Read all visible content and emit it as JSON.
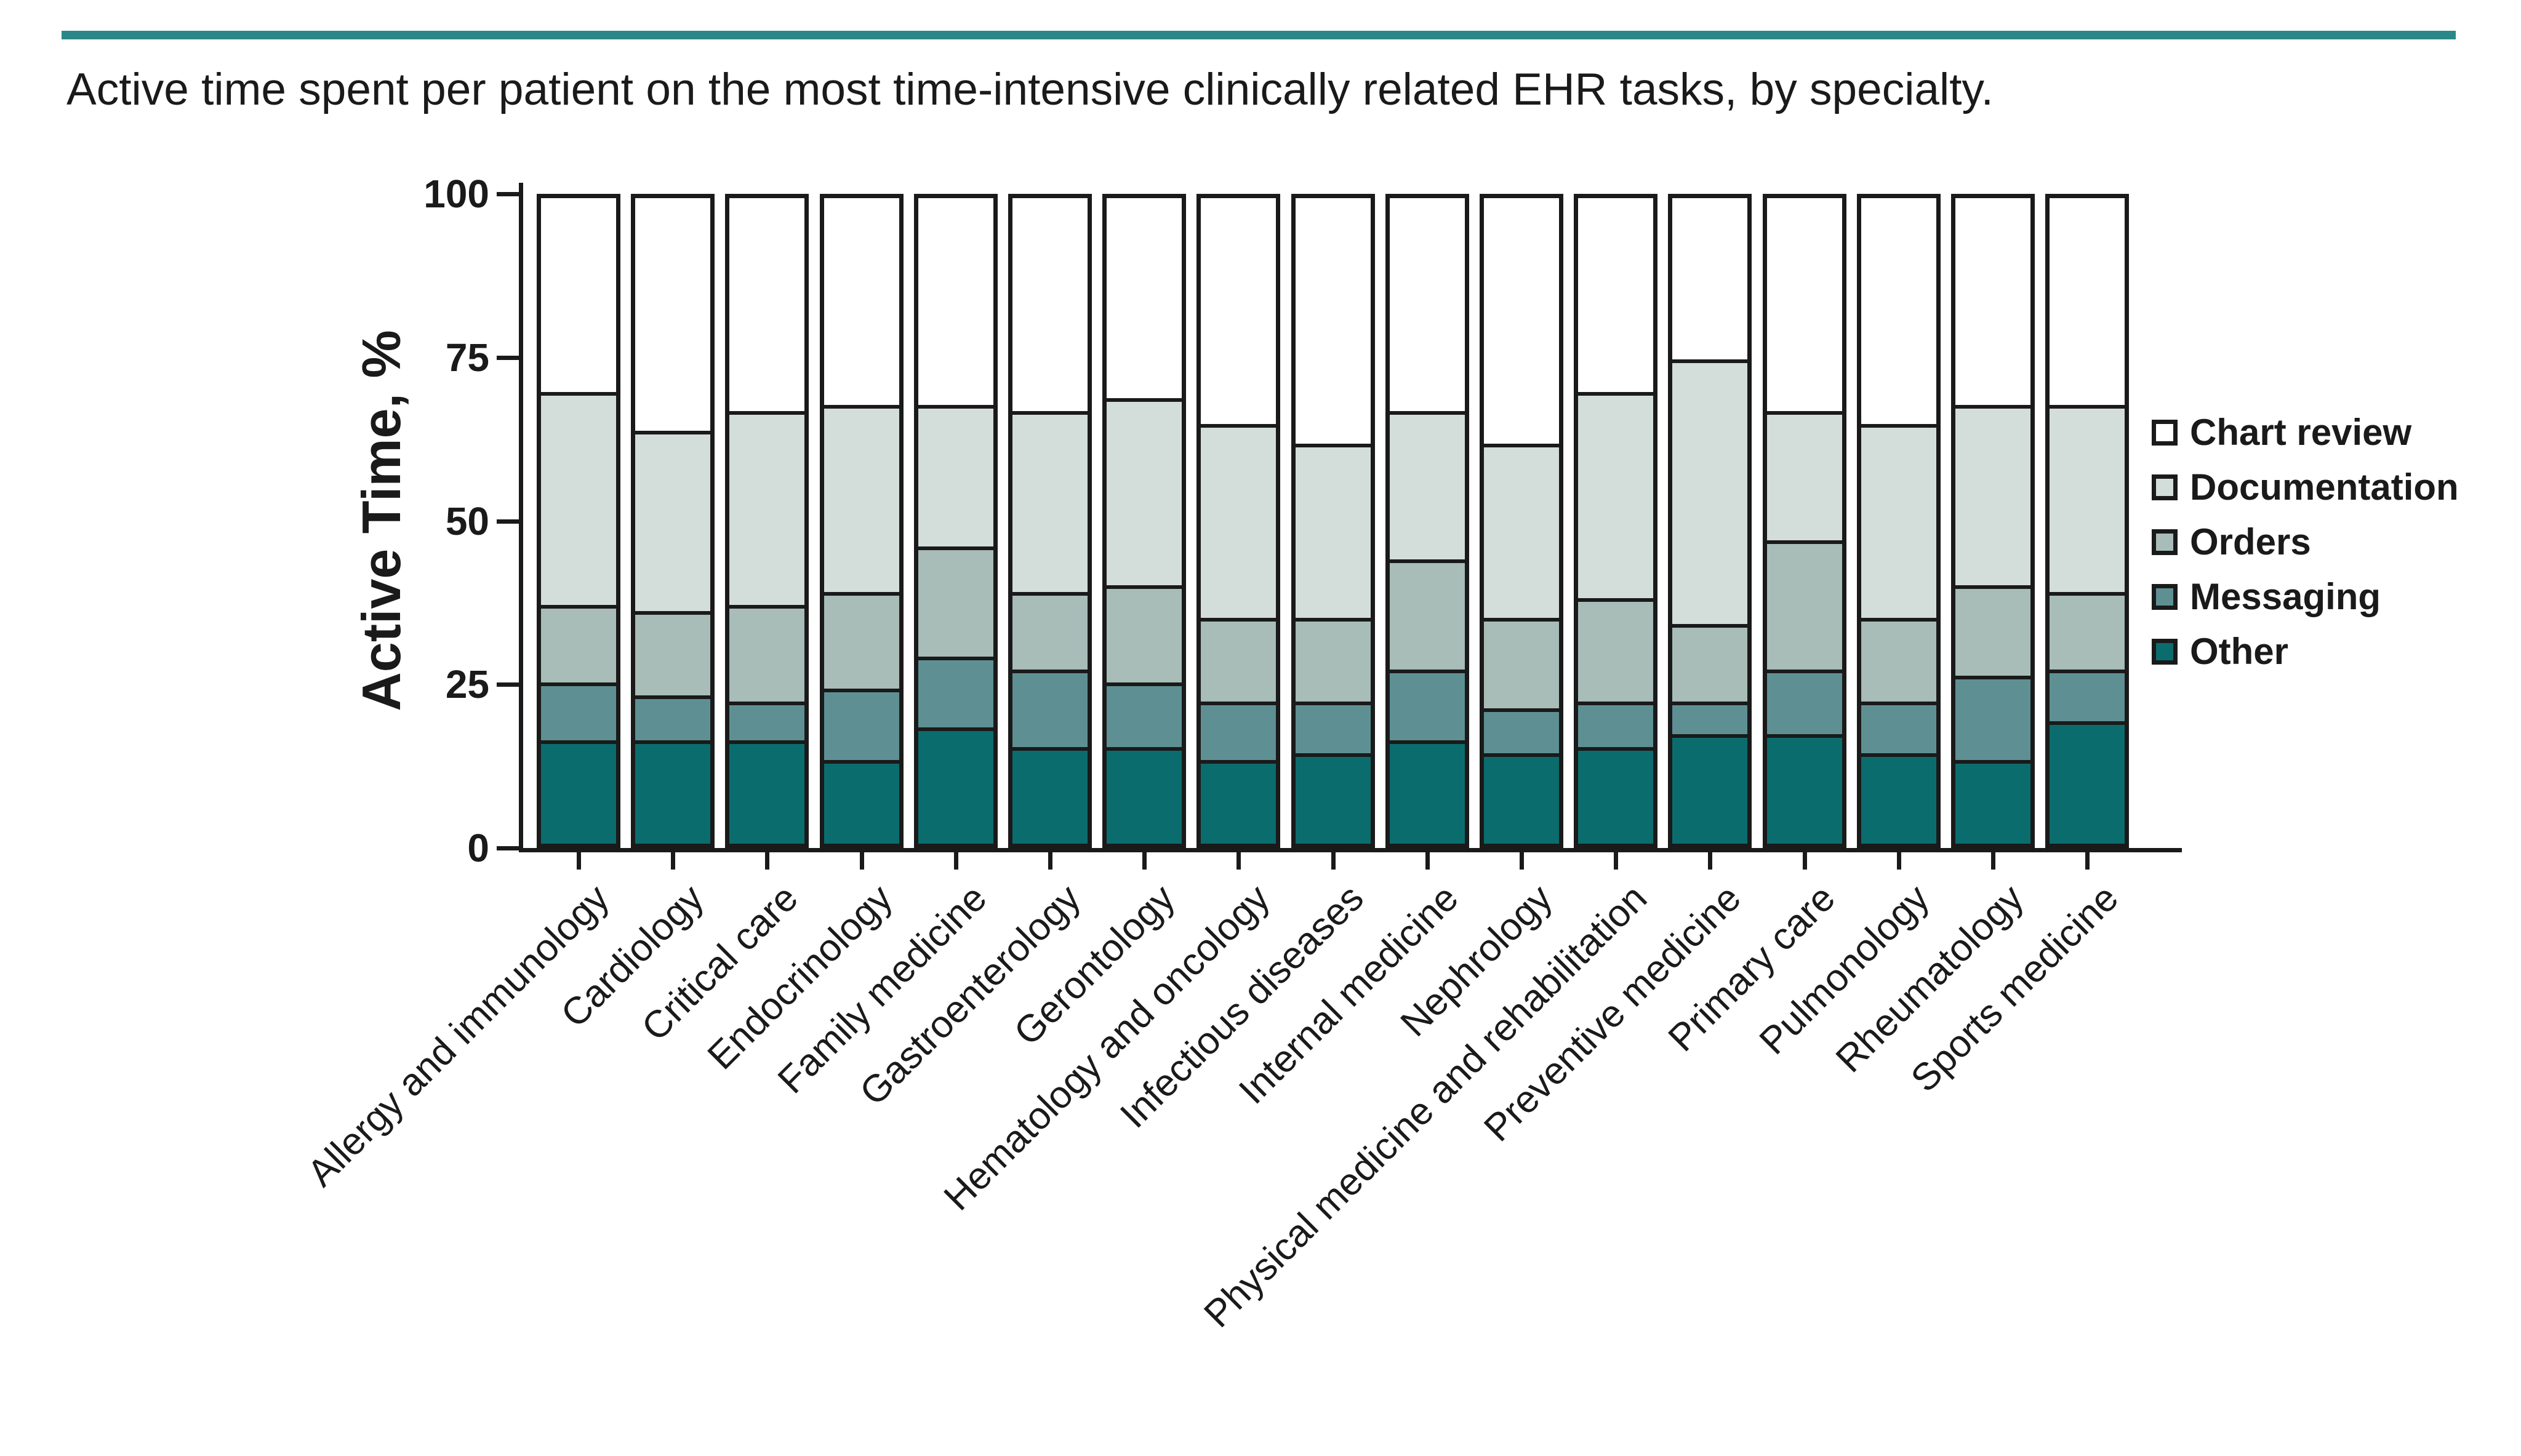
{
  "header": {
    "rule_color": "#2b8789"
  },
  "chart_data": {
    "type": "bar",
    "stacked": true,
    "stack_total": 100,
    "title": "Active time spent per patient on the most time-intensive clinically related EHR tasks, by specialty.",
    "xlabel": "",
    "ylabel": "Active Time, %",
    "ylim": [
      0,
      100
    ],
    "yticks": [
      0,
      25,
      50,
      75,
      100
    ],
    "grid": false,
    "legend_position": "right",
    "ink_color": "#1a1a1a",
    "categories": [
      "Allergy and immunology",
      "Cardiology",
      "Critical care",
      "Endocrinology",
      "Family medicine",
      "Gastroenterology",
      "Gerontology",
      "Hematology and oncology",
      "Infectious diseases",
      "Internal medicine",
      "Nephrology",
      "Physical medicine and rehabilitation",
      "Preventive medicine",
      "Primary care",
      "Pulmonology",
      "Rheumatology",
      "Sports medicine"
    ],
    "series": [
      {
        "name": "Other",
        "color": "#0b6c6e",
        "values": [
          16,
          16,
          16,
          13,
          18,
          15,
          15,
          13,
          14,
          16,
          14,
          15,
          17,
          17,
          14,
          13,
          19
        ]
      },
      {
        "name": "Messaging",
        "color": "#5e9093",
        "values": [
          9,
          7,
          6,
          11,
          11,
          12,
          10,
          9,
          8,
          11,
          7,
          7,
          5,
          10,
          8,
          13,
          8
        ]
      },
      {
        "name": "Orders",
        "color": "#a8bcb8",
        "values": [
          12,
          13,
          15,
          15,
          17,
          12,
          15,
          13,
          13,
          17,
          14,
          16,
          12,
          20,
          13,
          14,
          12
        ]
      },
      {
        "name": "Documentation",
        "color": "#d3ddd9",
        "values": [
          33,
          28,
          30,
          29,
          22,
          28,
          29,
          30,
          27,
          23,
          27,
          32,
          41,
          20,
          30,
          28,
          29
        ]
      },
      {
        "name": "Chart review",
        "color": "#ffffff",
        "values": [
          30,
          36,
          33,
          32,
          32,
          33,
          31,
          35,
          38,
          33,
          38,
          30,
          25,
          33,
          35,
          32,
          32
        ]
      }
    ]
  },
  "legend": {
    "items": [
      {
        "label": "Chart review",
        "color": "#ffffff"
      },
      {
        "label": "Documentation",
        "color": "#d3ddd9"
      },
      {
        "label": "Orders",
        "color": "#a8bcb8"
      },
      {
        "label": "Messaging",
        "color": "#5e9093"
      },
      {
        "label": "Other",
        "color": "#0b6c6e"
      }
    ]
  }
}
